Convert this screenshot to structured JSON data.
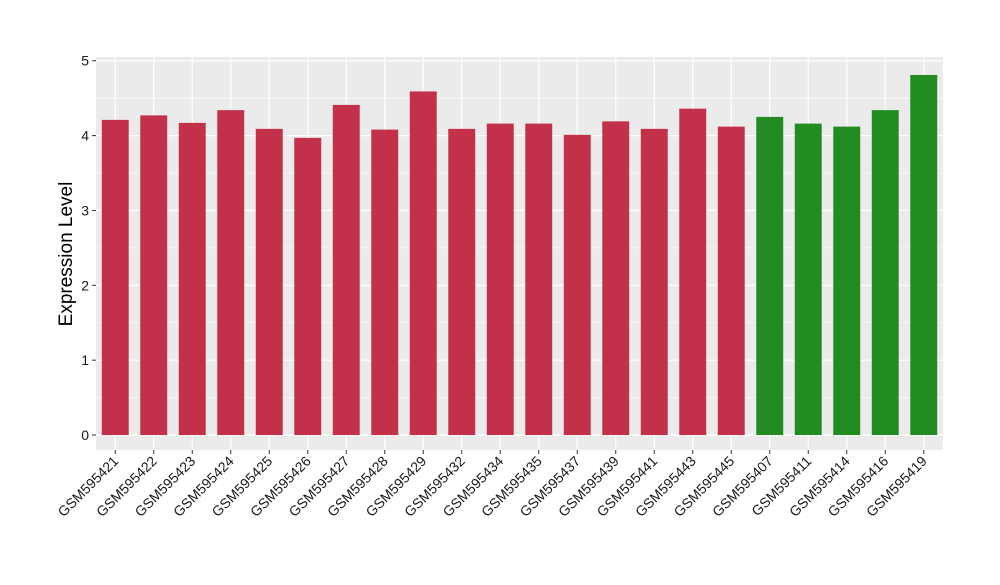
{
  "chart_data": {
    "type": "bar",
    "title": "",
    "xlabel": "",
    "ylabel": "Expression Level",
    "ylim": [
      -0.2,
      5.05
    ],
    "yticks": [
      0,
      1,
      2,
      3,
      4,
      5
    ],
    "grid": true,
    "legend": "none",
    "categories": [
      "GSM595421",
      "GSM595422",
      "GSM595423",
      "GSM595424",
      "GSM595425",
      "GSM595426",
      "GSM595427",
      "GSM595428",
      "GSM595429",
      "GSM595432",
      "GSM595434",
      "GSM595435",
      "GSM595437",
      "GSM595439",
      "GSM595441",
      "GSM595443",
      "GSM595445",
      "GSM595407",
      "GSM595411",
      "GSM595414",
      "GSM595416",
      "GSM595419"
    ],
    "values": [
      4.21,
      4.27,
      4.17,
      4.34,
      4.09,
      3.97,
      4.41,
      4.08,
      4.59,
      4.09,
      4.16,
      4.16,
      4.01,
      4.19,
      4.09,
      4.36,
      4.12,
      4.25,
      4.16,
      4.12,
      4.34,
      4.81
    ],
    "bar_colors": [
      "#c3304a",
      "#c3304a",
      "#c3304a",
      "#c3304a",
      "#c3304a",
      "#c3304a",
      "#c3304a",
      "#c3304a",
      "#c3304a",
      "#c3304a",
      "#c3304a",
      "#c3304a",
      "#c3304a",
      "#c3304a",
      "#c3304a",
      "#c3304a",
      "#c3304a",
      "#228b22",
      "#228b22",
      "#228b22",
      "#228b22",
      "#228b22"
    ],
    "panel_color": "#ebebeb",
    "grid_color": "#ffffff"
  }
}
